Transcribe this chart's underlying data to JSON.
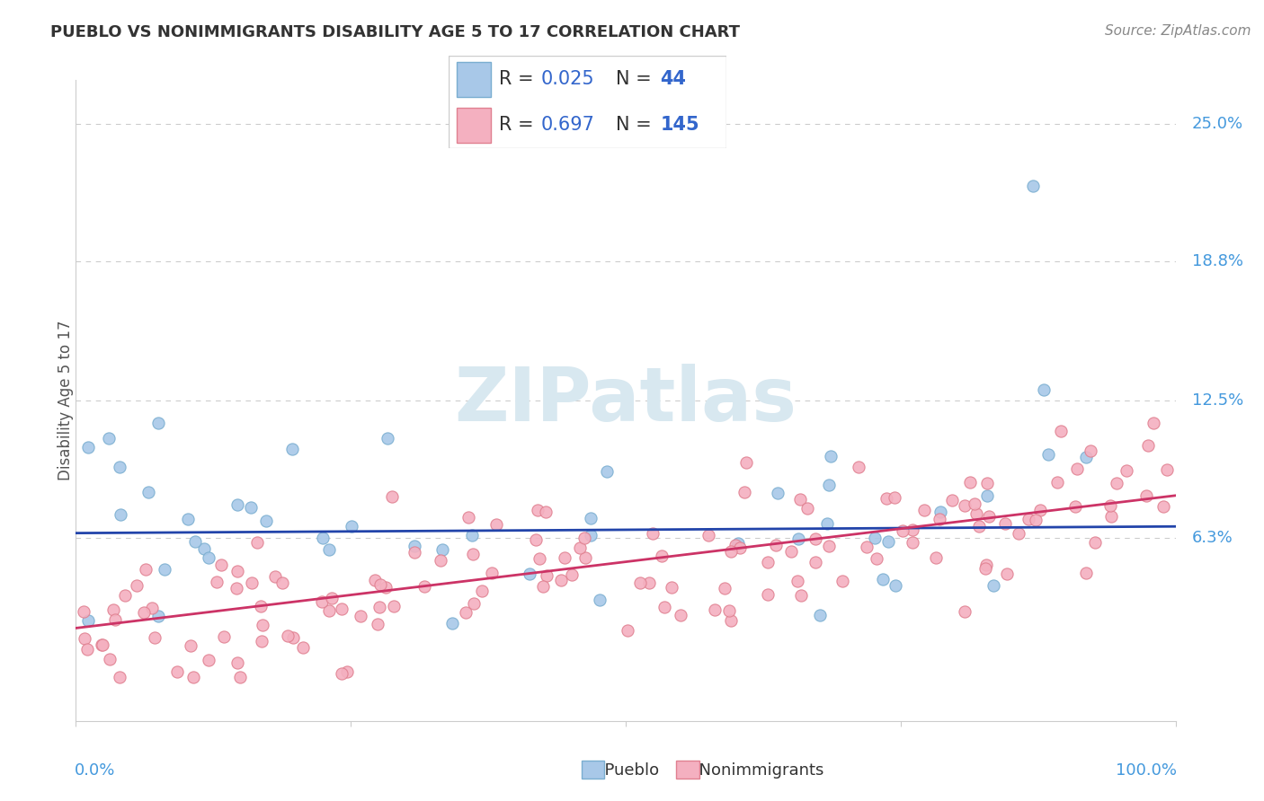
{
  "title": "PUEBLO VS NONIMMIGRANTS DISABILITY AGE 5 TO 17 CORRELATION CHART",
  "source": "Source: ZipAtlas.com",
  "ylabel": "Disability Age 5 to 17",
  "xlim": [
    0,
    1
  ],
  "ylim": [
    -0.02,
    0.27
  ],
  "ytick_values": [
    0.063,
    0.125,
    0.188,
    0.25
  ],
  "ytick_labels": [
    "6.3%",
    "12.5%",
    "18.8%",
    "25.0%"
  ],
  "xtick_labels": [
    "0.0%",
    "100.0%"
  ],
  "pueblo_color": "#a8c8e8",
  "pueblo_edge_color": "#7aaed0",
  "nonimm_color": "#f4b0c0",
  "nonimm_edge_color": "#e08090",
  "pueblo_line_color": "#2244aa",
  "nonimm_line_color": "#cc3366",
  "blue_text_color": "#3366cc",
  "watermark_color": "#d8e8f0",
  "pueblo_R": 0.025,
  "pueblo_N": 44,
  "nonimm_R": 0.697,
  "nonimm_N": 145,
  "pueblo_line_slope": 0.003,
  "pueblo_line_intercept": 0.065,
  "nonimm_line_slope": 0.06,
  "nonimm_line_intercept": 0.022,
  "background_color": "#ffffff",
  "grid_color": "#cccccc",
  "title_color": "#333333",
  "label_color": "#555555",
  "axis_tick_color": "#4499dd"
}
